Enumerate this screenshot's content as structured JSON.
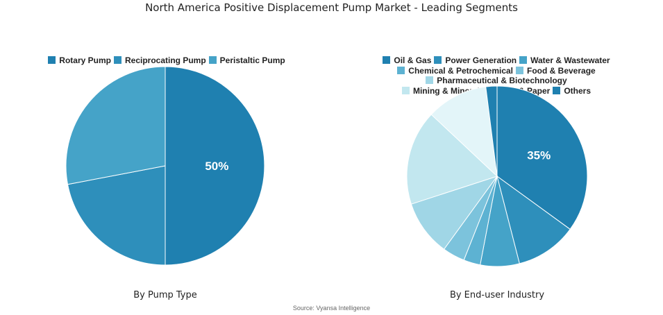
{
  "title": "North America Positive Displacement Pump Market - Leading Segments",
  "source": "Source: Vyansa Intelligence",
  "chart_data": [
    {
      "type": "pie",
      "subtitle": "By Pump Type",
      "legend_placement": "top",
      "categories": [
        "Rotary Pump",
        "Reciprocating Pump",
        "Peristaltic Pump"
      ],
      "values": [
        50,
        22,
        28
      ],
      "colors": [
        "#1f80b0",
        "#2e8fbb",
        "#45a3c8"
      ],
      "data_labels": [
        "50%",
        "",
        ""
      ]
    },
    {
      "type": "pie",
      "subtitle": "By End-user Industry",
      "legend_placement": "top",
      "categories": [
        "Oil & Gas",
        "Power Generation",
        "Water & Wastewater",
        "Chemical & Petrochemical",
        "Food & Beverage",
        "Pharmaceutical & Biotechnology",
        "Mining & Minerals",
        "Pulp & Paper",
        "Others"
      ],
      "values": [
        35,
        11,
        7,
        3,
        4,
        10,
        17,
        11,
        2
      ],
      "colors": [
        "#1f80b0",
        "#2e8fbb",
        "#45a3c8",
        "#5db2d2",
        "#7cc3dc",
        "#a0d6e6",
        "#c2e7ef",
        "#e3f5f9",
        "#1f80b0"
      ],
      "data_labels": [
        "35%",
        "",
        "",
        "",
        "",
        "",
        "",
        "",
        ""
      ]
    }
  ]
}
